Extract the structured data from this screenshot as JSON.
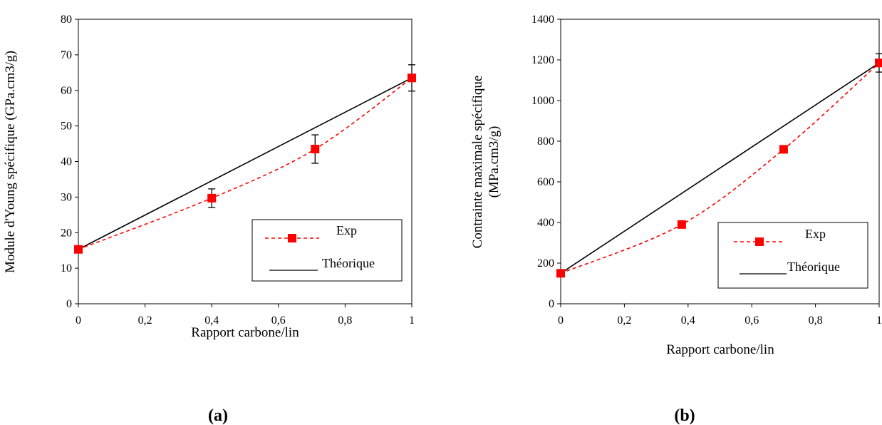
{
  "chart_data": [
    {
      "type": "line",
      "panel_label": "(a)",
      "xlabel": "Rapport carbone/lin",
      "ylabel": "Module d'Young spécifique (GPa.cm3/g)",
      "xlim": [
        0,
        1
      ],
      "ylim": [
        0,
        80
      ],
      "x_ticks": [
        0,
        0.2,
        0.4,
        0.6,
        0.8,
        1
      ],
      "x_tick_labels": [
        "0",
        "0,2",
        "0,4",
        "0,6",
        "0,8",
        "1"
      ],
      "y_ticks": [
        0,
        10,
        20,
        30,
        40,
        50,
        60,
        70,
        80
      ],
      "y_tick_labels": [
        "0",
        "10",
        "20",
        "30",
        "40",
        "50",
        "60",
        "70",
        "80"
      ],
      "grid": false,
      "legend_position": "bottom-right",
      "series": [
        {
          "name": "Exp",
          "style": "dashed-with-square-markers",
          "color": "#ff0000",
          "x": [
            0,
            0.4,
            0.71,
            1
          ],
          "y": [
            15.3,
            29.7,
            43.5,
            63.5
          ],
          "error": [
            0.8,
            2.6,
            4.0,
            3.7
          ]
        },
        {
          "name": "Théorique",
          "style": "solid",
          "color": "#000000",
          "x": [
            0,
            1
          ],
          "y": [
            15.3,
            63.5
          ]
        }
      ]
    },
    {
      "type": "line",
      "panel_label": "(b)",
      "xlabel": "Rapport carbone/lin",
      "ylabel": [
        "Contrainte maximale spécifique",
        "(MPa.cm3/g)"
      ],
      "xlim": [
        0,
        1
      ],
      "ylim": [
        0,
        1400
      ],
      "x_ticks": [
        0,
        0.2,
        0.4,
        0.6,
        0.8,
        1
      ],
      "x_tick_labels": [
        "0",
        "0,2",
        "0,4",
        "0,6",
        "0,8",
        "1"
      ],
      "y_ticks": [
        0,
        200,
        400,
        600,
        800,
        1000,
        1200,
        1400
      ],
      "y_tick_labels": [
        "0",
        "200",
        "400",
        "600",
        "800",
        "1000",
        "1200",
        "1400"
      ],
      "grid": false,
      "legend_position": "bottom-right",
      "series": [
        {
          "name": "Exp",
          "style": "dashed-with-square-markers",
          "color": "#ff0000",
          "x": [
            0,
            0.38,
            0.7,
            1
          ],
          "y": [
            150,
            390,
            760,
            1185
          ],
          "error": [
            12,
            10,
            12,
            45
          ]
        },
        {
          "name": "Théorique",
          "style": "solid",
          "color": "#000000",
          "x": [
            0,
            1
          ],
          "y": [
            150,
            1185
          ]
        }
      ]
    }
  ]
}
